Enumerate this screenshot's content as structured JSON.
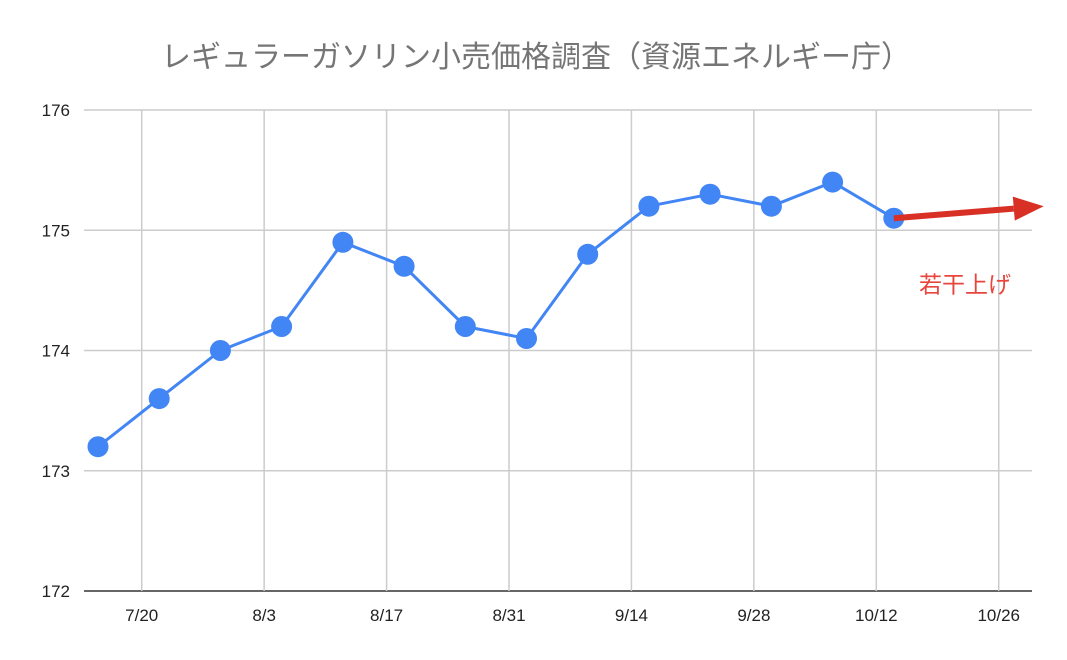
{
  "chart_data": {
    "type": "line",
    "title": "レギュラーガソリン小売価格調査（資源エネルギー庁）",
    "xlabel": "",
    "ylabel": "",
    "ylim": [
      172,
      176
    ],
    "y_ticks": [
      "172",
      "173",
      "174",
      "175",
      "176"
    ],
    "x_ticks": [
      "7/20",
      "8/3",
      "8/17",
      "8/31",
      "9/14",
      "9/28",
      "10/12",
      "10/26"
    ],
    "x_domain": [
      "2020-07-15",
      "2020-10-30"
    ],
    "x_tick_dates": [
      "2020-07-20",
      "2020-08-03",
      "2020-08-17",
      "2020-08-31",
      "2020-09-14",
      "2020-09-28",
      "2020-10-12",
      "2020-10-26"
    ],
    "grid": true,
    "legend": "none",
    "series": [
      {
        "color": "#4285f4",
        "x": [
          "2020-07-15",
          "2020-07-22",
          "2020-07-29",
          "2020-08-05",
          "2020-08-12",
          "2020-08-19",
          "2020-08-26",
          "2020-09-02",
          "2020-09-09",
          "2020-09-16",
          "2020-09-23",
          "2020-09-30",
          "2020-10-07",
          "2020-10-14"
        ],
        "values": [
          173.2,
          173.6,
          174.0,
          174.2,
          174.9,
          174.7,
          174.2,
          174.1,
          174.8,
          175.2,
          175.3,
          175.2,
          175.4,
          175.1
        ]
      }
    ],
    "annotations": [
      {
        "text": "若干上げ",
        "color": "#e8453c",
        "arrow_color": "#d93025",
        "arrow_from": [
          "2020-10-14",
          175.1
        ],
        "arrow_to": [
          "2020-10-30",
          175.2
        ],
        "text_anchor_point": [
          "2020-10-21",
          174.55
        ]
      }
    ]
  }
}
